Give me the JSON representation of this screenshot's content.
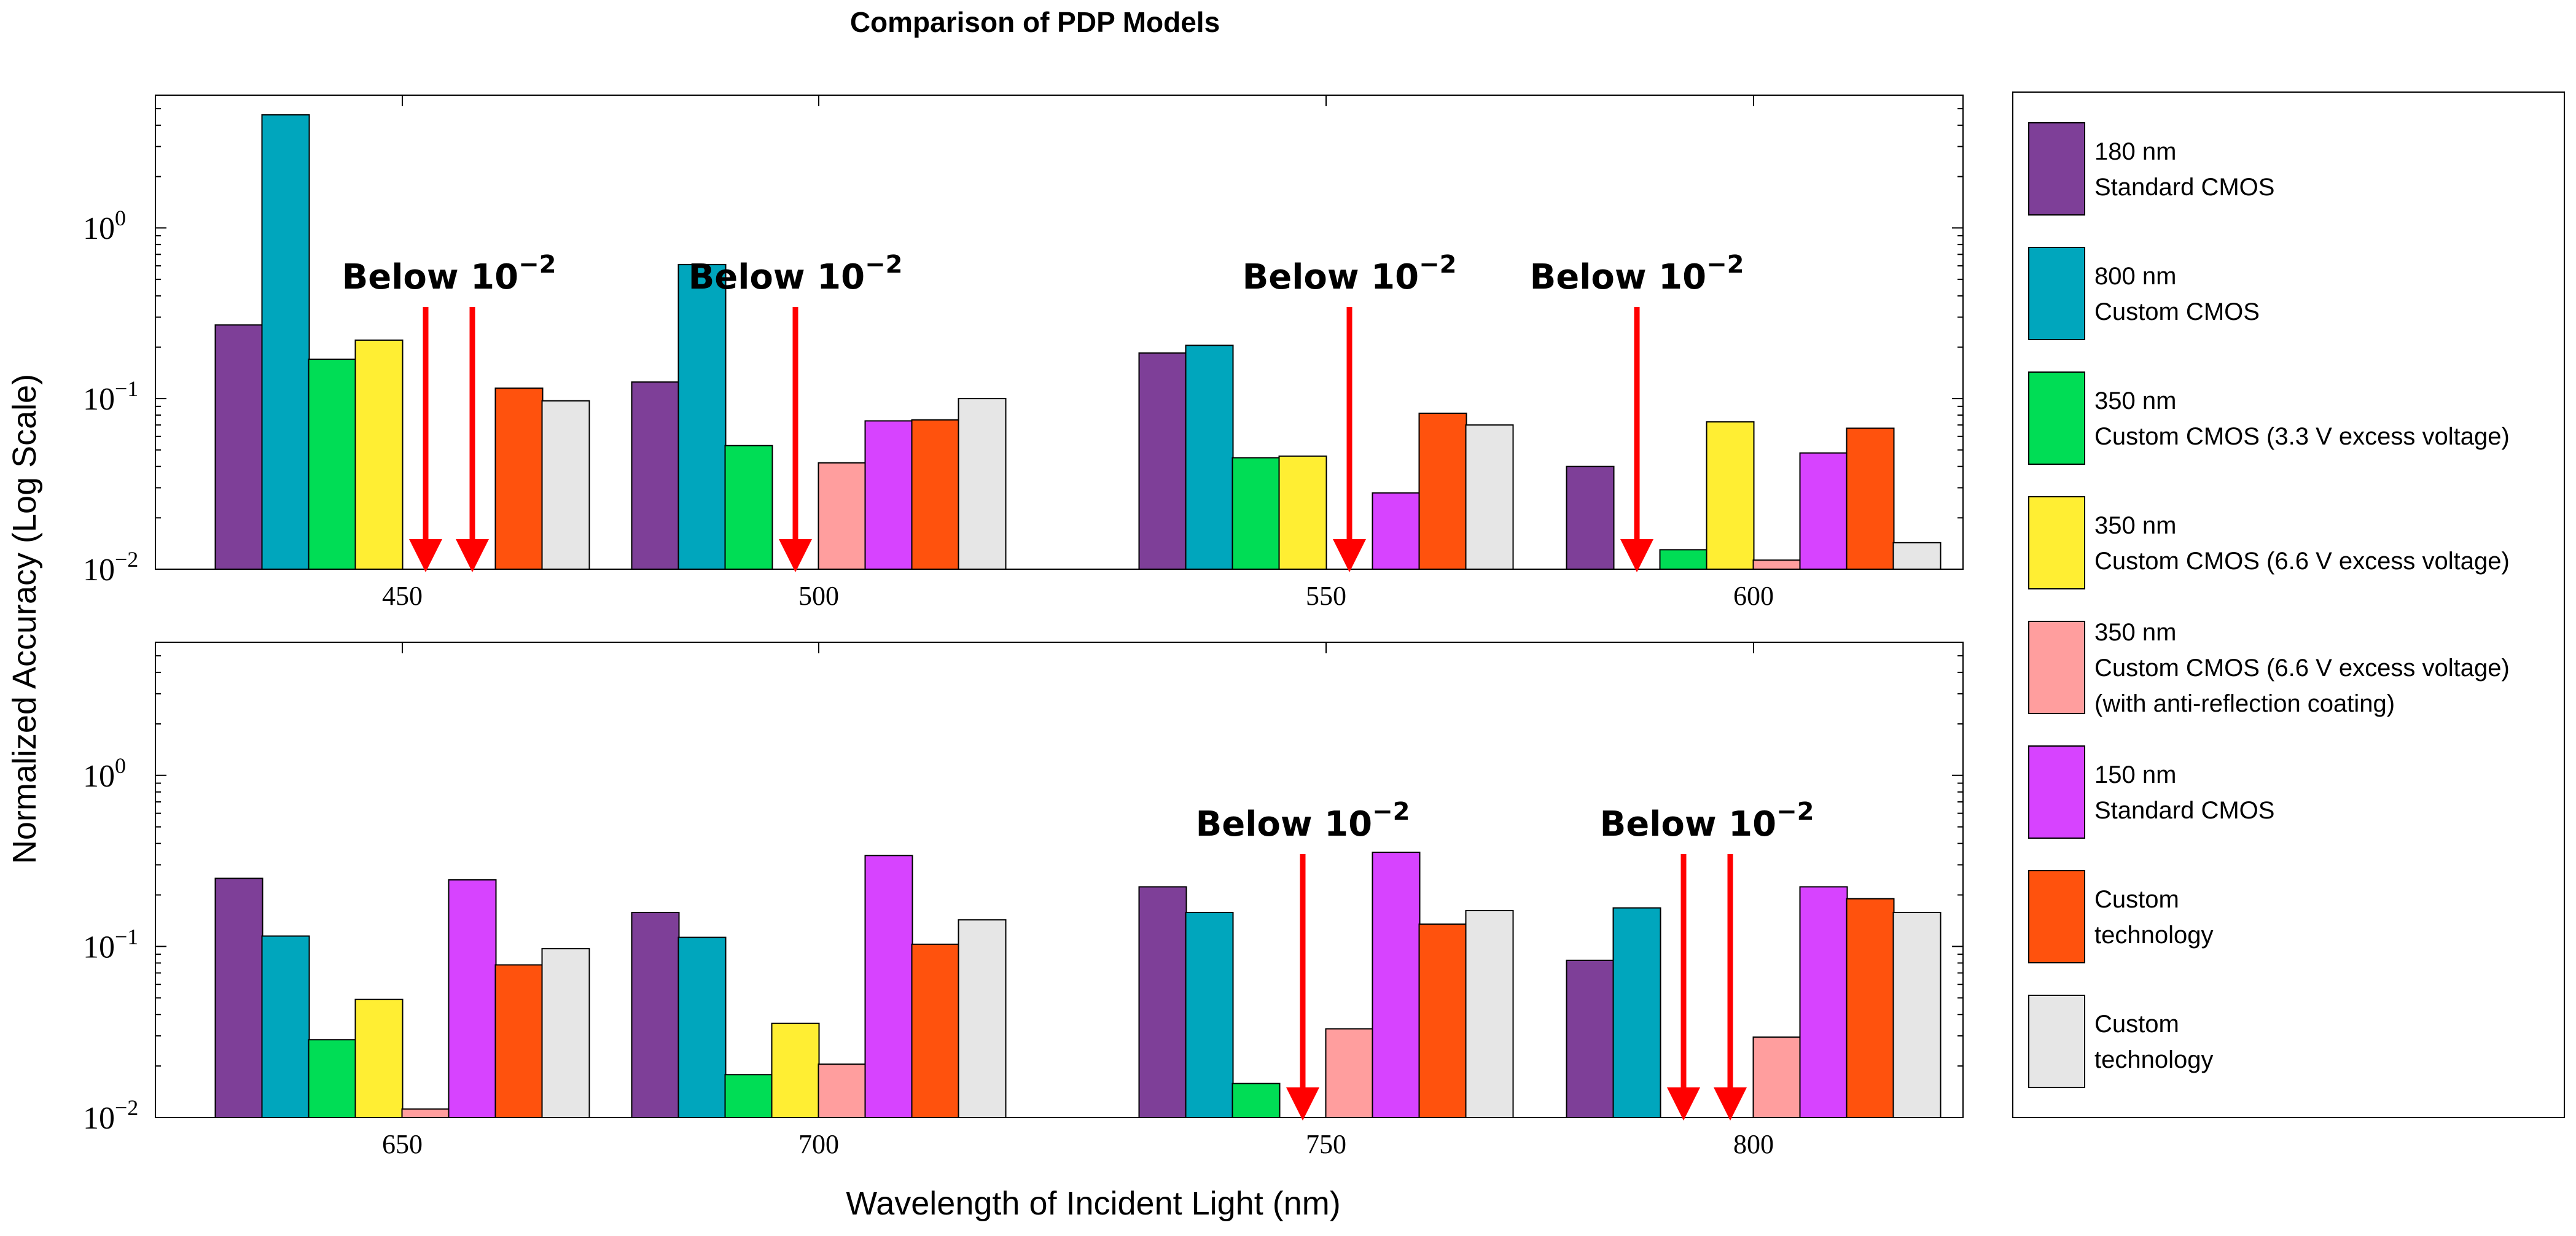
{
  "chart_data": {
    "type": "bar",
    "title": "Comparison of PDP Models",
    "xlabel": "Wavelength of Incident Light (nm)",
    "ylabel": "Normalized Accuracy (Log Scale)",
    "yscale": "log",
    "ylim": [
      0.01,
      6
    ],
    "yticks": [
      {
        "value": 0.01,
        "base": "10",
        "exp": "−2"
      },
      {
        "value": 0.1,
        "base": "10",
        "exp": "−1"
      },
      {
        "value": 1,
        "base": "10",
        "exp": "0"
      }
    ],
    "annotation_prefix": "Below",
    "annotation_base": "10",
    "annotation_exp": "−2",
    "legend_position": "right",
    "series": [
      {
        "name": "180 nm\nStandard CMOS",
        "lines": [
          "180 nm",
          "Standard CMOS"
        ],
        "color": "#7e3f98"
      },
      {
        "name": "800 nm\nCustom CMOS",
        "lines": [
          "800 nm",
          "Custom CMOS"
        ],
        "color": "#00a6bd"
      },
      {
        "name": "350 nm\nCustom CMOS (3.3 V excess voltage)",
        "lines": [
          "350 nm",
          "Custom CMOS (3.3 V excess voltage)"
        ],
        "color": "#00dd55"
      },
      {
        "name": "350 nm\nCustom CMOS (6.6 V excess voltage)",
        "lines": [
          "350 nm",
          "Custom CMOS (6.6 V excess voltage)"
        ],
        "color": "#ffee33"
      },
      {
        "name": "350 nm\nCustom CMOS (6.6 V excess voltage)\n(with anti-reflection coating)",
        "lines": [
          "350 nm",
          "Custom CMOS (6.6 V excess voltage)",
          "(with anti-reflection coating)"
        ],
        "color": "#ff9e9e"
      },
      {
        "name": "150 nm\nStandard CMOS",
        "lines": [
          "150 nm",
          "Standard CMOS"
        ],
        "color": "#d743ff"
      },
      {
        "name": "Custom\ntechnology",
        "lines": [
          "Custom",
          "technology"
        ],
        "color": "#ff520d"
      },
      {
        "name": "Custom\ntechnology",
        "lines": [
          "Custom",
          "technology"
        ],
        "color": "#e6e6e6"
      }
    ],
    "panels": [
      {
        "categories": [
          "450",
          "500",
          "550",
          "600"
        ],
        "values": [
          [
            0.27,
            4.6,
            0.17,
            0.22,
            null,
            null,
            0.115,
            0.097
          ],
          [
            0.125,
            0.61,
            0.053,
            null,
            0.042,
            0.074,
            0.075,
            0.1
          ],
          [
            0.185,
            0.205,
            0.045,
            0.046,
            null,
            0.028,
            0.082,
            0.07
          ],
          [
            0.04,
            null,
            0.013,
            0.073,
            0.0113,
            0.048,
            0.067,
            0.0143
          ]
        ],
        "below_markers": [
          {
            "category": 0,
            "series": [
              4,
              5
            ]
          },
          {
            "category": 1,
            "series": [
              3
            ]
          },
          {
            "category": 2,
            "series": [
              4
            ]
          },
          {
            "category": 3,
            "series": [
              1
            ]
          }
        ]
      },
      {
        "categories": [
          "650",
          "700",
          "750",
          "800"
        ],
        "values": [
          [
            0.25,
            0.115,
            0.0285,
            0.049,
            0.0112,
            0.245,
            0.078,
            0.097
          ],
          [
            0.158,
            0.113,
            0.0178,
            0.0355,
            0.0205,
            0.34,
            0.103,
            0.143
          ],
          [
            0.223,
            0.158,
            0.0158,
            null,
            0.033,
            0.355,
            0.135,
            0.162
          ],
          [
            0.083,
            0.168,
            null,
            null,
            0.0295,
            0.223,
            0.19,
            0.158
          ]
        ],
        "below_markers": [
          {
            "category": 2,
            "series": [
              3
            ]
          },
          {
            "category": 3,
            "series": [
              2,
              3
            ]
          }
        ]
      }
    ]
  }
}
